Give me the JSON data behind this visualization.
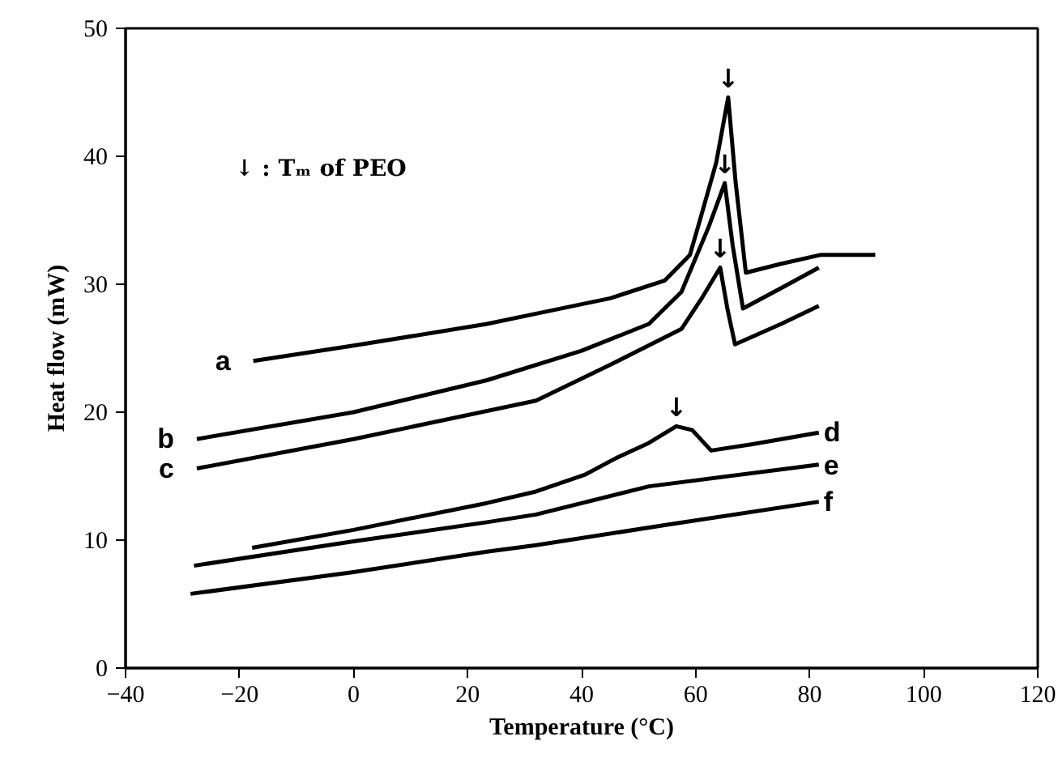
{
  "chart_data": {
    "type": "line",
    "xlabel": "Temperature (°C)",
    "ylabel": "Heat flow (mW)",
    "xlim": [
      -40,
      120
    ],
    "xticks": [
      -40,
      -20,
      0,
      20,
      40,
      60,
      80,
      100,
      120
    ],
    "ylim": [
      0,
      50
    ],
    "yticks": [
      0,
      10,
      20,
      30,
      40,
      50
    ],
    "grid": false,
    "marker": "none",
    "line_style": "solid",
    "series": [
      {
        "name": "a",
        "color": "#000000",
        "x": [
          -17.6,
          0,
          23.4,
          32,
          45,
          54.6,
          59,
          61,
          63.6,
          65.7,
          67,
          68.8,
          75,
          82,
          91.5
        ],
        "values": [
          24.0,
          25.2,
          26.9,
          27.7,
          28.9,
          30.3,
          32.3,
          35.4,
          39.5,
          44.6,
          38.0,
          30.9,
          31.6,
          32.3,
          32.3
        ]
      },
      {
        "name": "b",
        "color": "#000000",
        "x": [
          -27.5,
          0,
          23.4,
          40,
          51.8,
          57.5,
          62.3,
          65.1,
          66.5,
          68.3,
          75,
          81.6
        ],
        "values": [
          17.9,
          20.0,
          22.5,
          24.8,
          26.9,
          29.4,
          34.5,
          37.9,
          33.0,
          28.1,
          29.7,
          31.3
        ]
      },
      {
        "name": "c",
        "color": "#000000",
        "x": [
          -27.5,
          0,
          32,
          45,
          57.5,
          61.2,
          64.3,
          65.6,
          66.9,
          75,
          81.6
        ],
        "values": [
          15.6,
          17.9,
          20.9,
          23.7,
          26.5,
          29.0,
          31.3,
          28.0,
          25.3,
          26.9,
          28.3
        ]
      },
      {
        "name": "d",
        "color": "#000000",
        "x": [
          -17.8,
          0,
          23.4,
          32,
          40.5,
          46,
          51.8,
          56.6,
          59.4,
          62.7,
          70,
          81.6
        ],
        "values": [
          9.4,
          10.8,
          12.9,
          13.8,
          15.1,
          16.4,
          17.6,
          18.9,
          18.6,
          17.0,
          17.5,
          18.4
        ]
      },
      {
        "name": "e",
        "color": "#000000",
        "x": [
          -28,
          0,
          23.4,
          32,
          51.8,
          81.6
        ],
        "values": [
          8.0,
          9.9,
          11.4,
          12.0,
          14.2,
          15.9
        ]
      },
      {
        "name": "f",
        "color": "#000000",
        "x": [
          -28.6,
          0,
          23.4,
          32,
          55,
          81.6
        ],
        "values": [
          5.8,
          7.5,
          9.1,
          9.6,
          11.2,
          13.0
        ]
      }
    ],
    "annotations": [
      "↓ : Tₘ of PEO",
      {
        "text": "↓",
        "x": 65.7,
        "y": 44.6
      },
      {
        "text": "↓",
        "x": 65.1,
        "y": 37.9
      },
      {
        "text": "↓",
        "x": 64.3,
        "y": 31.3
      },
      {
        "text": "↓",
        "x": 56.6,
        "y": 18.9
      }
    ]
  }
}
